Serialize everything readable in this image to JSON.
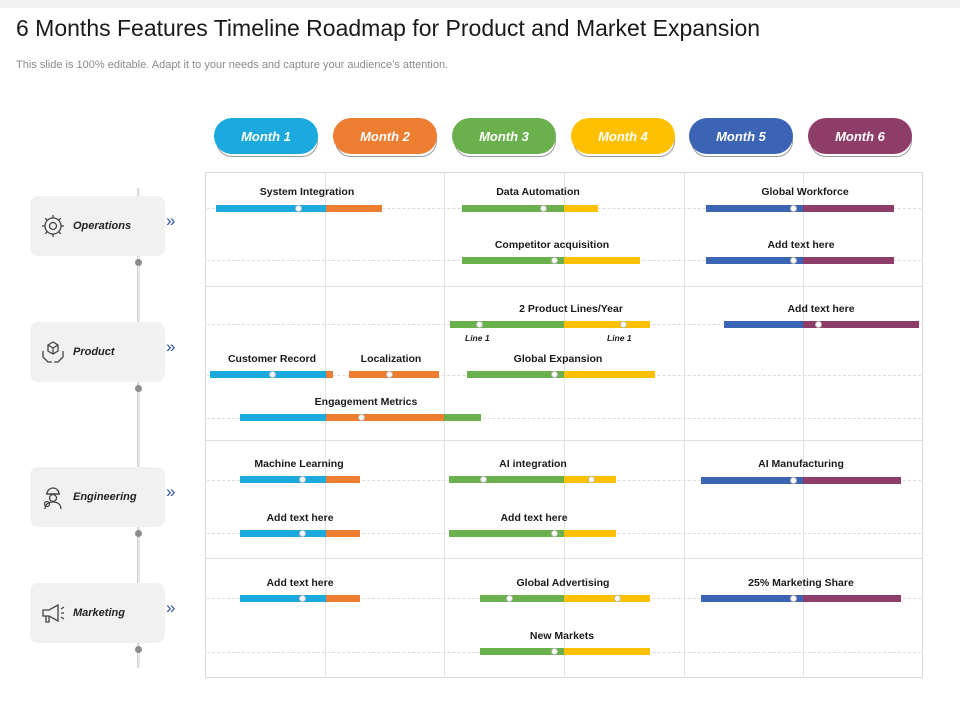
{
  "title": "6 Months Features Timeline Roadmap for Product and Market Expansion",
  "subtitle": "This slide is 100% editable. Adapt it to your needs and capture your audience’s attention.",
  "months": [
    {
      "label": "Month 1",
      "color": "#1ba9de"
    },
    {
      "label": "Month 2",
      "color": "#ed7d31"
    },
    {
      "label": "Month 3",
      "color": "#6ab04c"
    },
    {
      "label": "Month 4",
      "color": "#ffc000"
    },
    {
      "label": "Month 5",
      "color": "#3c64b4"
    },
    {
      "label": "Month 6",
      "color": "#8e3d68"
    }
  ],
  "categories": [
    {
      "label": "Operations"
    },
    {
      "label": "Product"
    },
    {
      "label": "Engineering"
    },
    {
      "label": "Marketing"
    }
  ],
  "chevron": "»",
  "tasks": {
    "system_integration": "System Integration",
    "data_automation": "Data Automation",
    "global_workforce": "Global Workforce",
    "competitor_acquisition": "Competitor acquisition",
    "ops_add_text": "Add text here",
    "product_lines": "2 Product Lines/Year",
    "line1_a": "Line 1",
    "line1_b": "Line 1",
    "product_add_text": "Add text here",
    "customer_record": "Customer Record",
    "localization": "Localization",
    "global_expansion": "Global Expansion",
    "engagement_metrics": "Engagement Metrics",
    "machine_learning": "Machine Learning",
    "ai_integration": "AI  integration",
    "ai_manufacturing": "AI Manufacturing",
    "eng_add_text_1": "Add text here",
    "eng_add_text_2": "Add text here",
    "mkt_add_text": "Add text here",
    "global_advertising": "Global Advertising",
    "marketing_share": "25% Marketing Share",
    "new_markets": "New Markets"
  }
}
